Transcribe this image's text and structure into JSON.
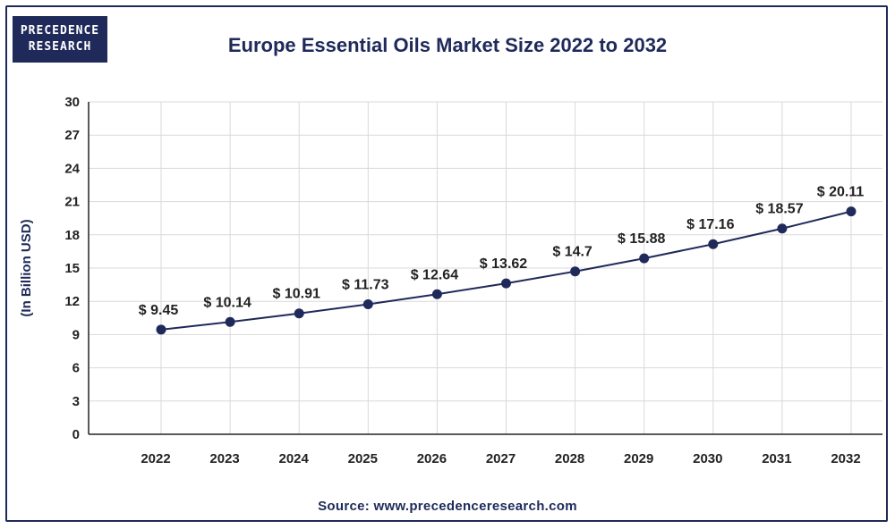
{
  "logo": {
    "line1": "PRECEDENCE",
    "line2": "RESEARCH"
  },
  "title": "Europe Essential Oils Market Size 2022 to 2032",
  "source": "Source: www.precedenceresearch.com",
  "colors": {
    "line": "#1f2a5a",
    "marker": "#1f2a5a",
    "grid": "#d9d9d9",
    "axis": "#222222"
  },
  "chart_data": {
    "type": "line",
    "title": "Europe Essential Oils Market Size 2022 to 2032",
    "xlabel": "",
    "ylabel": "(In Billion USD)",
    "categories": [
      "2022",
      "2023",
      "2024",
      "2025",
      "2026",
      "2027",
      "2028",
      "2029",
      "2030",
      "2031",
      "2032"
    ],
    "values": [
      9.45,
      10.14,
      10.91,
      11.73,
      12.64,
      13.62,
      14.7,
      15.88,
      17.16,
      18.57,
      20.11
    ],
    "data_labels": [
      "$ 9.45",
      "$ 10.14",
      "$ 10.91",
      "$ 11.73",
      "$ 12.64",
      "$ 13.62",
      "$ 14.7",
      "$ 15.88",
      "$ 17.16",
      "$ 18.57",
      "$ 20.11"
    ],
    "ylim": [
      0,
      30
    ],
    "yticks": [
      "0",
      "3",
      "6",
      "9",
      "12",
      "15",
      "18",
      "21",
      "24",
      "27",
      "30"
    ],
    "grid": true,
    "legend": "none"
  }
}
